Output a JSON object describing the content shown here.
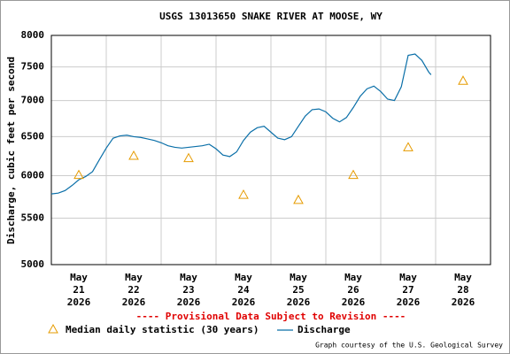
{
  "chart_data": {
    "type": "line",
    "title": "USGS 13013650 SNAKE RIVER AT MOOSE, WY",
    "y_label": "Discharge, cubic feet per second",
    "log_y": true,
    "grid": true,
    "ylim": [
      5000,
      8000
    ],
    "yticks": [
      5000,
      5500,
      6000,
      6500,
      7000,
      7500,
      8000
    ],
    "xlim": [
      "2026-05-21 00:00",
      "2026-05-29 00:00"
    ],
    "categories": [
      "May 21 2026",
      "May 22 2026",
      "May 23 2026",
      "May 24 2026",
      "May 25 2026",
      "May 26 2026",
      "May 27 2026",
      "May 28 2026"
    ],
    "median": {
      "name": "Median daily statistic (30 years)",
      "color": "#e69b00",
      "values": [
        6010,
        6250,
        6220,
        5770,
        5710,
        6010,
        6360,
        7290
      ]
    },
    "series": [
      {
        "name": "Discharge",
        "color": "#0a6fa8",
        "x": [
          "2026-05-21 00:00",
          "2026-05-21 03:00",
          "2026-05-21 06:00",
          "2026-05-21 09:00",
          "2026-05-21 12:00",
          "2026-05-21 15:00",
          "2026-05-21 18:00",
          "2026-05-21 21:00",
          "2026-05-22 00:00",
          "2026-05-22 03:00",
          "2026-05-22 06:00",
          "2026-05-22 09:00",
          "2026-05-22 12:00",
          "2026-05-22 15:00",
          "2026-05-22 18:00",
          "2026-05-22 21:00",
          "2026-05-23 00:00",
          "2026-05-23 03:00",
          "2026-05-23 06:00",
          "2026-05-23 09:00",
          "2026-05-23 12:00",
          "2026-05-23 15:00",
          "2026-05-23 18:00",
          "2026-05-23 21:00",
          "2026-05-24 00:00",
          "2026-05-24 03:00",
          "2026-05-24 06:00",
          "2026-05-24 09:00",
          "2026-05-24 12:00",
          "2026-05-24 15:00",
          "2026-05-24 18:00",
          "2026-05-24 21:00",
          "2026-05-25 00:00",
          "2026-05-25 03:00",
          "2026-05-25 06:00",
          "2026-05-25 09:00",
          "2026-05-25 12:00",
          "2026-05-25 15:00",
          "2026-05-25 18:00",
          "2026-05-25 21:00",
          "2026-05-26 00:00",
          "2026-05-26 03:00",
          "2026-05-26 06:00",
          "2026-05-26 09:00",
          "2026-05-26 12:00",
          "2026-05-26 15:00",
          "2026-05-26 18:00",
          "2026-05-26 21:00",
          "2026-05-27 00:00",
          "2026-05-27 03:00",
          "2026-05-27 06:00",
          "2026-05-27 09:00",
          "2026-05-27 12:00",
          "2026-05-27 15:00",
          "2026-05-27 18:00",
          "2026-05-27 21:00",
          "2026-05-27 22:00"
        ],
        "values": [
          5780,
          5790,
          5820,
          5880,
          5950,
          5990,
          6050,
          6200,
          6350,
          6480,
          6510,
          6520,
          6500,
          6490,
          6470,
          6450,
          6420,
          6380,
          6360,
          6350,
          6360,
          6370,
          6380,
          6400,
          6340,
          6260,
          6240,
          6300,
          6450,
          6560,
          6620,
          6640,
          6560,
          6480,
          6460,
          6500,
          6640,
          6780,
          6870,
          6880,
          6840,
          6750,
          6700,
          6760,
          6900,
          7060,
          7170,
          7210,
          7130,
          7020,
          7000,
          7200,
          7680,
          7700,
          7600,
          7420,
          7380
        ]
      }
    ],
    "note": "---- Provisional Data Subject to Revision ----",
    "credit": "Graph courtesy of the U.S. Geological Survey"
  }
}
